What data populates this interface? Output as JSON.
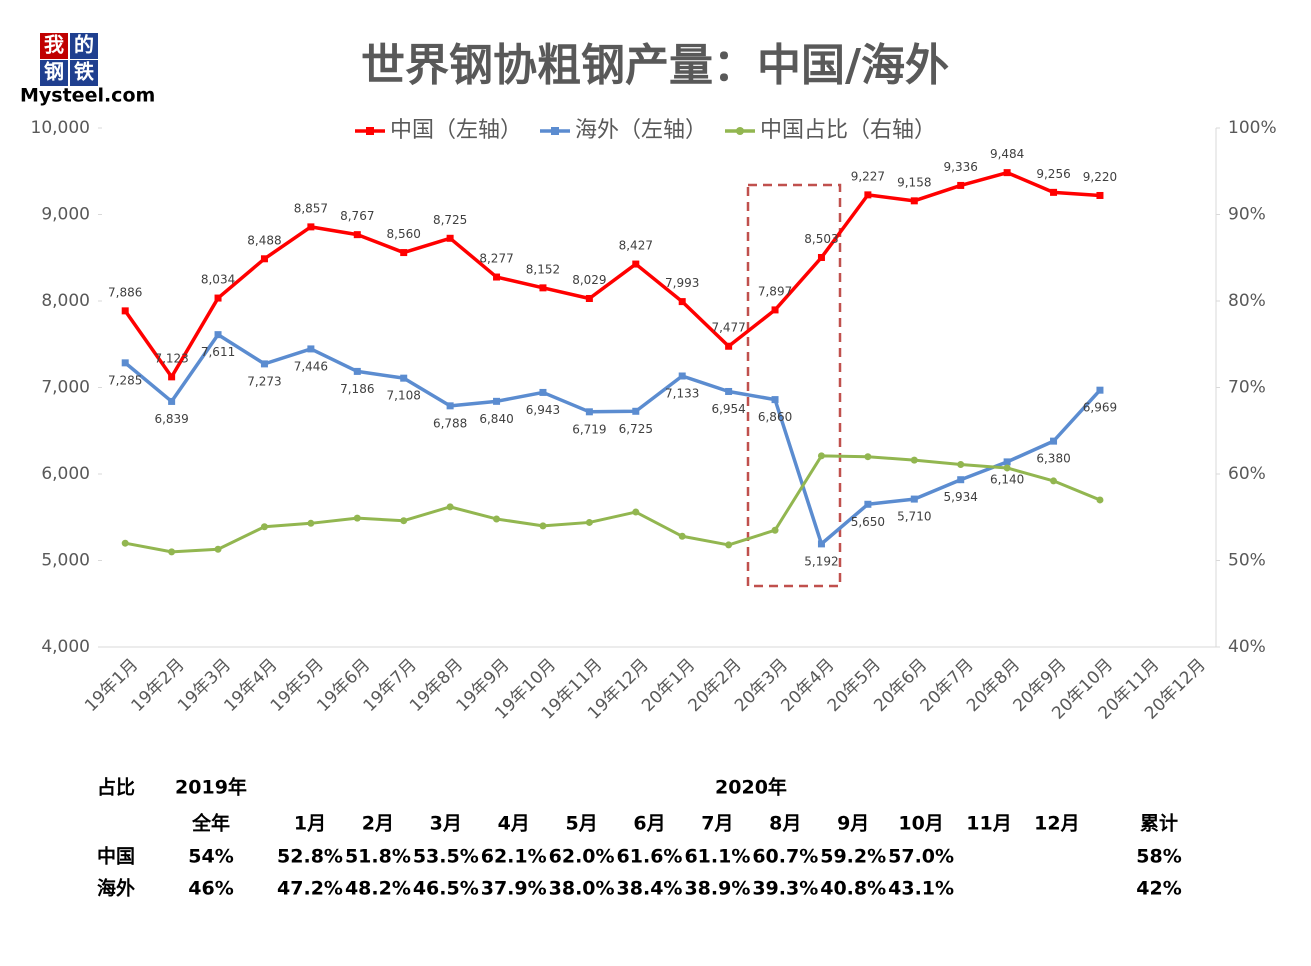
{
  "logo": {
    "chars": [
      "我",
      "的",
      "钢",
      "铁"
    ],
    "text": "Mysteel.com"
  },
  "chart_data": {
    "type": "line",
    "title": "世界钢协粗钢产量：中国/海外",
    "categories": [
      "19年1月",
      "19年2月",
      "19年3月",
      "19年4月",
      "19年5月",
      "19年6月",
      "19年7月",
      "19年8月",
      "19年9月",
      "19年10月",
      "19年11月",
      "19年12月",
      "20年1月",
      "20年2月",
      "20年3月",
      "20年4月",
      "20年5月",
      "20年6月",
      "20年7月",
      "20年8月",
      "20年9月",
      "20年10月",
      "20年11月",
      "20年12月"
    ],
    "series": [
      {
        "name": "中国（左轴）",
        "color": "#ff0000",
        "marker": "square",
        "values": [
          7886,
          7123,
          8034,
          8488,
          8857,
          8767,
          8560,
          8725,
          8277,
          8152,
          8029,
          8427,
          7993,
          7477,
          7897,
          8503,
          9227,
          9158,
          9336,
          9484,
          9256,
          9220,
          null,
          null
        ],
        "value_labels": [
          "7,886",
          "7,123",
          "8,034",
          "8,488",
          "8,857",
          "8,767",
          "8,560",
          "8,725",
          "8,277",
          "8,152",
          "8,029",
          "8,427",
          "7,993",
          "7,477",
          "7,897",
          "8,503",
          "9,227",
          "9,158",
          "9,336",
          "9,484",
          "9,256",
          "9,220",
          null,
          null
        ]
      },
      {
        "name": "海外（左轴）",
        "color": "#5b8cd0",
        "marker": "square",
        "values": [
          7285,
          6839,
          7611,
          7273,
          7446,
          7186,
          7108,
          6788,
          6840,
          6943,
          6719,
          6725,
          7133,
          6954,
          6860,
          5192,
          5650,
          5710,
          5934,
          6140,
          6380,
          6969,
          null,
          null
        ],
        "value_labels": [
          "7,285",
          "6,839",
          "7,611",
          "7,273",
          "7,446",
          "7,186",
          "7,108",
          "6,788",
          "6,840",
          "6,943",
          "6,719",
          "6,725",
          "7,133",
          "6,954",
          "6,860",
          "5,192",
          "5,650",
          "5,710",
          "5,934",
          "6,140",
          "6,380",
          "6,969",
          null,
          null
        ]
      },
      {
        "name": "中国占比（右轴）",
        "color": "#92b650",
        "marker": "circle",
        "axis": "y2",
        "values": [
          52.0,
          51.0,
          51.3,
          53.9,
          54.3,
          54.9,
          54.6,
          56.2,
          54.8,
          54.0,
          54.4,
          55.6,
          52.8,
          51.8,
          53.5,
          62.1,
          62.0,
          61.6,
          61.1,
          60.7,
          59.2,
          57.0,
          null,
          null
        ]
      }
    ],
    "ylim": [
      4000,
      10000
    ],
    "yticks": [
      {
        "value": 4000,
        "label": "4,000"
      },
      {
        "value": 5000,
        "label": "5,000"
      },
      {
        "value": 6000,
        "label": "6,000"
      },
      {
        "value": 7000,
        "label": "7,000"
      },
      {
        "value": 8000,
        "label": "8,000"
      },
      {
        "value": 9000,
        "label": "9,000"
      },
      {
        "value": 10000,
        "label": "10,000"
      }
    ],
    "y2lim": [
      40,
      100
    ],
    "y2ticks": [
      {
        "value": 40,
        "label": "40%"
      },
      {
        "value": 50,
        "label": "50%"
      },
      {
        "value": 60,
        "label": "60%"
      },
      {
        "value": 70,
        "label": "70%"
      },
      {
        "value": 80,
        "label": "80%"
      },
      {
        "value": 90,
        "label": "90%"
      },
      {
        "value": 100,
        "label": "100%"
      }
    ],
    "legend": "top",
    "grid": false
  },
  "table": {
    "corner": "占比",
    "year1": "2019年",
    "year2": "2020年",
    "full_year": "全年",
    "months": [
      "1月",
      "2月",
      "3月",
      "4月",
      "5月",
      "6月",
      "7月",
      "8月",
      "9月",
      "10月",
      "11月",
      "12月"
    ],
    "cumulative": "累计",
    "rows": [
      {
        "label": "中国",
        "full_year": "54%",
        "months": [
          "52.8%",
          "51.8%",
          "53.5%",
          "62.1%",
          "62.0%",
          "61.6%",
          "61.1%",
          "60.7%",
          "59.2%",
          "57.0%"
        ],
        "cumulative": "58%"
      },
      {
        "label": "海外",
        "full_year": "46%",
        "months": [
          "47.2%",
          "48.2%",
          "46.5%",
          "37.9%",
          "38.0%",
          "38.4%",
          "38.9%",
          "39.3%",
          "40.8%",
          "43.1%"
        ],
        "cumulative": "42%"
      }
    ]
  }
}
